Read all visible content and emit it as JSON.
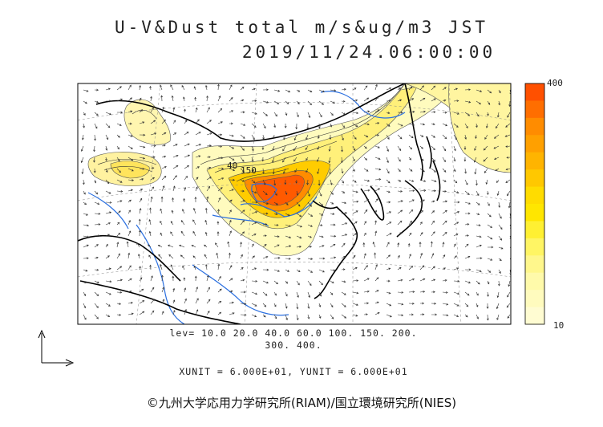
{
  "title": {
    "line1": "U-V&Dust total m/s&ug/m3 JST",
    "line2": "2019/11/24.06:00:00"
  },
  "contour_levels": {
    "line1": "lev= 10.0 20.0 40.0 60.0 100. 150. 200.",
    "line2": "300. 400."
  },
  "units_text": "XUNIT = 6.000E+01, YUNIT = 6.000E+01",
  "colorbar": {
    "max_label": "400",
    "min_label": "10",
    "colors": [
      "#ff5000",
      "#ff6e00",
      "#ff8c00",
      "#ffa000",
      "#ffb400",
      "#ffc800",
      "#ffdc00",
      "#ffe600",
      "#fff032",
      "#fff564",
      "#fff78c",
      "#fffaaa",
      "#fffbbe",
      "#fffcd2"
    ]
  },
  "map_labels": {
    "contour_40": "40",
    "contour_150": "150"
  },
  "credit": "©九州大学応用力学研究所(RIAM)/国立環境研究所(NIES)"
}
